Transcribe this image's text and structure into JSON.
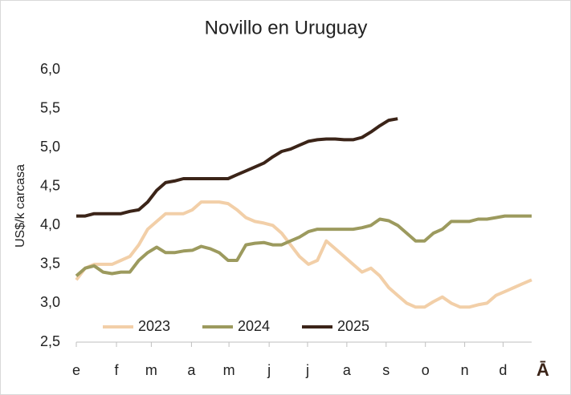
{
  "chart_data": {
    "type": "line",
    "title": "Novillo en Uruguay",
    "ylabel": "US$/k carcasa",
    "xlabel": "Ā",
    "x": [
      0,
      1,
      2,
      3,
      4,
      5,
      6,
      7,
      8,
      9,
      10,
      11,
      12,
      13,
      14,
      15,
      16,
      17,
      18,
      19,
      20,
      21,
      22,
      23,
      24,
      25,
      26,
      27,
      28,
      29,
      30,
      31,
      32,
      33,
      34,
      35,
      36,
      37,
      38,
      39,
      40,
      41,
      42,
      43,
      44,
      45,
      46,
      47,
      48,
      49,
      50,
      51
    ],
    "xlim": [
      0,
      51
    ],
    "xticks": [
      {
        "value": 0,
        "label": "e"
      },
      {
        "value": 4.5,
        "label": "f"
      },
      {
        "value": 8.4,
        "label": "m"
      },
      {
        "value": 12.9,
        "label": "a"
      },
      {
        "value": 17.1,
        "label": "m"
      },
      {
        "value": 21.6,
        "label": "j"
      },
      {
        "value": 25.9,
        "label": "j"
      },
      {
        "value": 30.3,
        "label": "a"
      },
      {
        "value": 34.7,
        "label": "s"
      },
      {
        "value": 39.1,
        "label": "o"
      },
      {
        "value": 43.5,
        "label": "n"
      },
      {
        "value": 47.8,
        "label": "d"
      }
    ],
    "ylim": [
      2.5,
      6.0
    ],
    "yticks": [
      {
        "value": 2.5,
        "label": "2,5"
      },
      {
        "value": 3.0,
        "label": "3,0"
      },
      {
        "value": 3.5,
        "label": "3,5"
      },
      {
        "value": 4.0,
        "label": "4,0"
      },
      {
        "value": 4.5,
        "label": "4,5"
      },
      {
        "value": 5.0,
        "label": "5,0"
      },
      {
        "value": 5.5,
        "label": "5,5"
      },
      {
        "value": 6.0,
        "label": "6,0"
      }
    ],
    "grid": false,
    "legend": "bottom-left",
    "series": [
      {
        "name": "2023",
        "color": "#f2cfa8",
        "values": [
          3.3,
          3.45,
          3.5,
          3.5,
          3.5,
          3.55,
          3.6,
          3.75,
          3.95,
          4.05,
          4.15,
          4.15,
          4.15,
          4.2,
          4.3,
          4.3,
          4.3,
          4.28,
          4.2,
          4.1,
          4.05,
          4.03,
          4.0,
          3.9,
          3.75,
          3.6,
          3.5,
          3.55,
          3.8,
          3.7,
          3.6,
          3.5,
          3.4,
          3.45,
          3.35,
          3.2,
          3.1,
          3.0,
          2.95,
          2.95,
          3.02,
          3.08,
          3.0,
          2.95,
          2.95,
          2.98,
          3.0,
          3.1,
          3.15,
          3.2,
          3.25,
          3.3
        ]
      },
      {
        "name": "2024",
        "color": "#9c9a5e",
        "values": [
          3.35,
          3.45,
          3.48,
          3.4,
          3.38,
          3.4,
          3.4,
          3.55,
          3.65,
          3.72,
          3.65,
          3.65,
          3.67,
          3.68,
          3.73,
          3.7,
          3.65,
          3.55,
          3.55,
          3.75,
          3.77,
          3.78,
          3.75,
          3.75,
          3.8,
          3.85,
          3.92,
          3.95,
          3.95,
          3.95,
          3.95,
          3.95,
          3.97,
          4.0,
          4.08,
          4.06,
          4.0,
          3.9,
          3.8,
          3.8,
          3.9,
          3.95,
          4.05,
          4.05,
          4.05,
          4.08,
          4.08,
          4.1,
          4.12,
          4.12,
          4.12,
          4.12
        ]
      },
      {
        "name": "2025",
        "color": "#3b2418",
        "values": [
          4.12,
          4.12,
          4.15,
          4.15,
          4.15,
          4.15,
          4.18,
          4.2,
          4.3,
          4.45,
          4.55,
          4.57,
          4.6,
          4.6,
          4.6,
          4.6,
          4.6,
          4.6,
          4.65,
          4.7,
          4.75,
          4.8,
          4.88,
          4.95,
          4.98,
          5.03,
          5.08,
          5.1,
          5.11,
          5.11,
          5.1,
          5.1,
          5.13,
          5.2,
          5.28,
          5.35,
          5.37,
          null,
          null,
          null,
          null,
          null,
          null,
          null,
          null,
          null,
          null,
          null,
          null,
          null,
          null,
          null
        ]
      }
    ]
  }
}
